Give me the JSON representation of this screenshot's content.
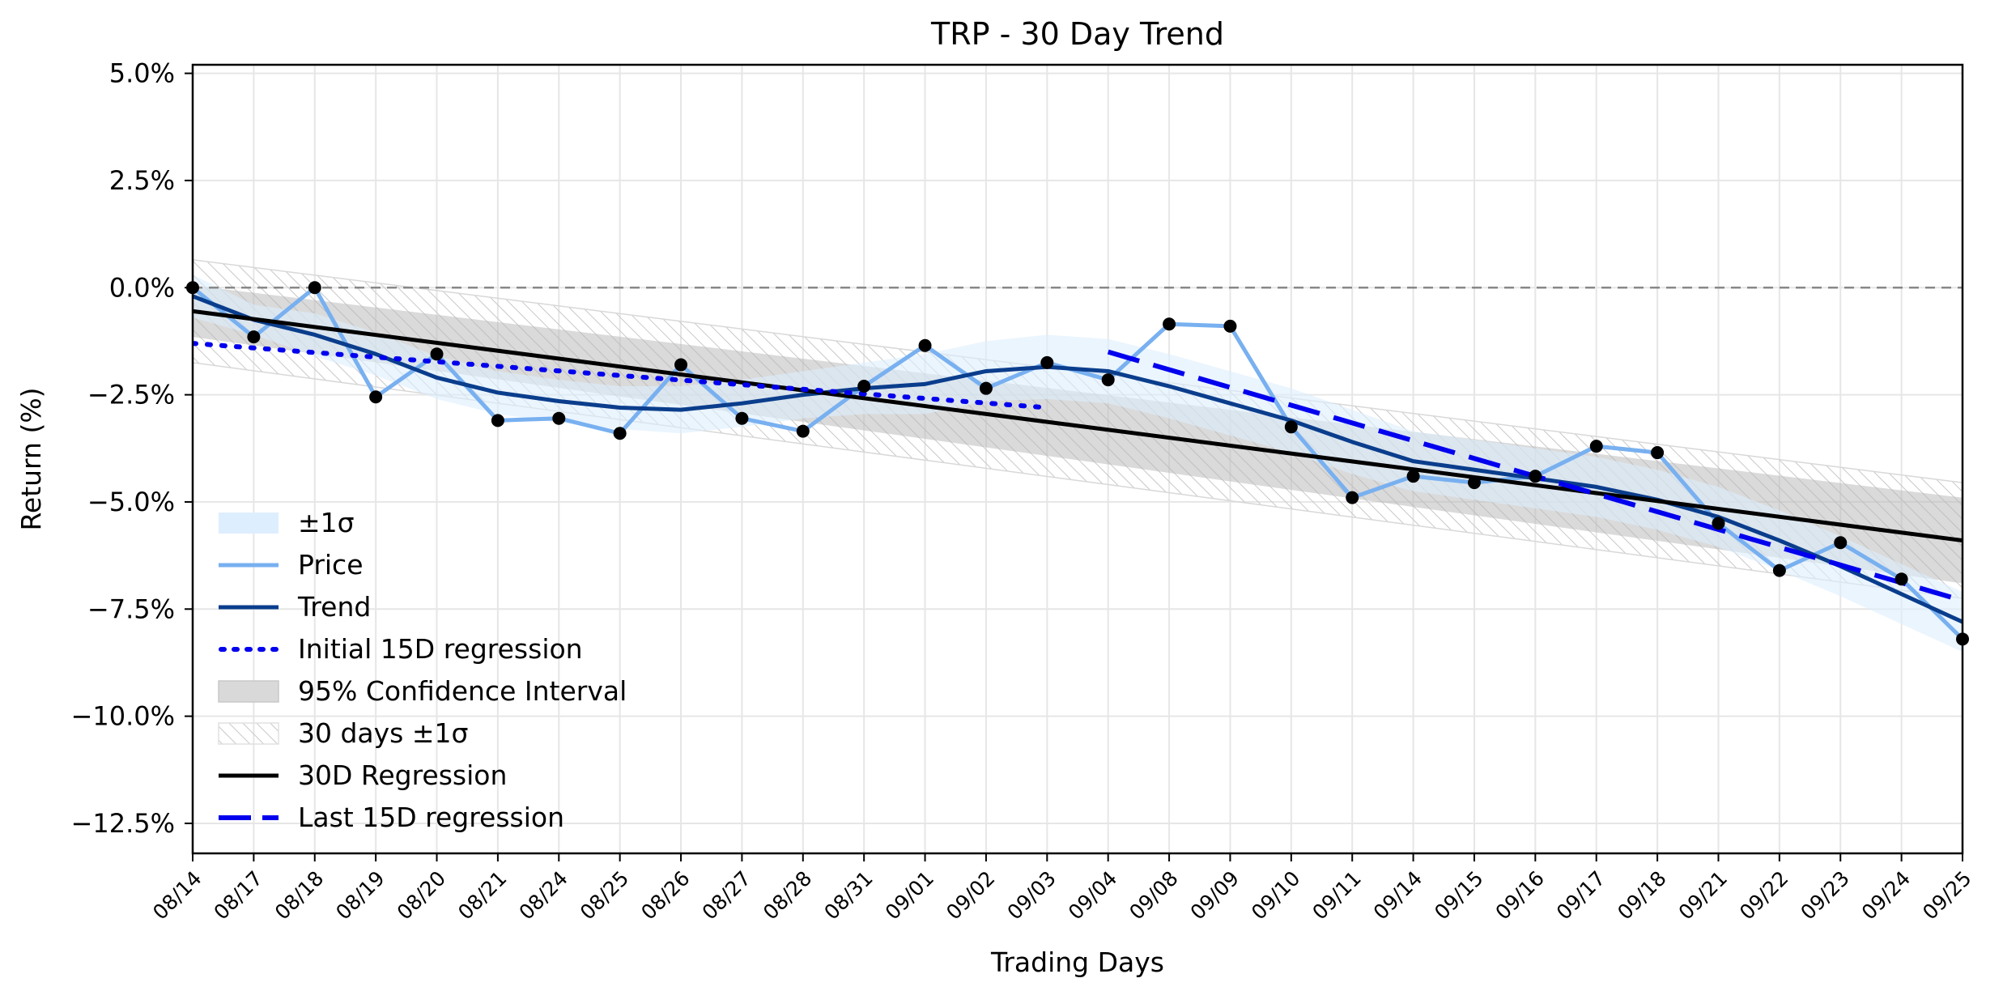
{
  "chart_data": {
    "type": "line",
    "title": "TRP - 30 Day Trend",
    "xlabel": "Trading Days",
    "ylabel": "Return (%)",
    "categories": [
      "08/14",
      "08/17",
      "08/18",
      "08/19",
      "08/20",
      "08/21",
      "08/24",
      "08/25",
      "08/26",
      "08/27",
      "08/28",
      "08/31",
      "09/01",
      "09/02",
      "09/03",
      "09/04",
      "09/08",
      "09/09",
      "09/10",
      "09/11",
      "09/14",
      "09/15",
      "09/16",
      "09/17",
      "09/18",
      "09/21",
      "09/22",
      "09/23",
      "09/24",
      "09/25"
    ],
    "ylim": [
      -13.2,
      5.2
    ],
    "yticks": [
      5.0,
      2.5,
      0.0,
      -2.5,
      -5.0,
      -7.5,
      -10.0,
      -12.5
    ],
    "ytick_labels": [
      "5.0%",
      "2.5%",
      "0.0%",
      "−2.5%",
      "−5.0%",
      "−7.5%",
      "−10.0%",
      "−12.5%"
    ],
    "grid": true,
    "legend_position": "lower-left",
    "zero_line": 0.0,
    "series": [
      {
        "name": "Price",
        "color": "#78b0f0",
        "values": [
          0.0,
          -1.15,
          0.0,
          -2.55,
          -1.55,
          -3.1,
          -3.05,
          -3.4,
          -1.8,
          -3.05,
          -3.35,
          -2.3,
          -1.35,
          -2.35,
          -1.75,
          -2.15,
          -0.85,
          -0.9,
          -3.25,
          -4.9,
          -4.4,
          -4.55,
          -4.4,
          -3.7,
          -3.85,
          -5.5,
          -6.6,
          -5.95,
          -6.8,
          -8.2
        ]
      },
      {
        "name": "Trend",
        "color": "#0a3d8c",
        "values": [
          -0.2,
          -0.75,
          -1.1,
          -1.55,
          -2.1,
          -2.45,
          -2.65,
          -2.8,
          -2.85,
          -2.7,
          -2.5,
          -2.35,
          -2.25,
          -1.95,
          -1.85,
          -1.95,
          -2.3,
          -2.7,
          -3.1,
          -3.6,
          -4.05,
          -4.25,
          -4.45,
          -4.65,
          -4.95,
          -5.35,
          -5.9,
          -6.5,
          -7.15,
          -7.8
        ]
      },
      {
        "name": "Initial 15D regression",
        "color": "#0000ee",
        "style": "dotted",
        "x": [
          0,
          14
        ],
        "values": [
          -1.3,
          -2.8
        ]
      },
      {
        "name": "30D Regression",
        "color": "#000000",
        "x": [
          0,
          29
        ],
        "values": [
          -0.55,
          -5.9
        ]
      },
      {
        "name": "Last 15D regression",
        "color": "#0000ee",
        "style": "dashed",
        "x": [
          15,
          29
        ],
        "values": [
          -1.5,
          -7.3
        ]
      }
    ],
    "bands": [
      {
        "name": "±1σ",
        "color": "#ddeefe",
        "upper": [
          0.3,
          -0.4,
          -0.6,
          -1.05,
          -1.6,
          -1.95,
          -2.15,
          -2.3,
          -2.3,
          -2.15,
          -1.95,
          -1.75,
          -1.55,
          -1.25,
          -1.1,
          -1.2,
          -1.55,
          -1.95,
          -2.35,
          -2.85,
          -3.35,
          -3.55,
          -3.75,
          -3.95,
          -4.25,
          -4.65,
          -5.2,
          -5.8,
          -6.45,
          -7.1
        ],
        "lower": [
          -0.7,
          -1.1,
          -1.6,
          -2.05,
          -2.6,
          -2.95,
          -3.15,
          -3.3,
          -3.4,
          -3.25,
          -3.05,
          -2.95,
          -2.95,
          -2.65,
          -2.6,
          -2.7,
          -3.05,
          -3.45,
          -3.85,
          -4.35,
          -4.75,
          -4.95,
          -5.15,
          -5.35,
          -5.65,
          -6.05,
          -6.6,
          -7.2,
          -7.85,
          -8.5
        ]
      },
      {
        "name": "95% Confidence Interval",
        "color": "#b5b5b5",
        "upper": [
          0.05,
          -4.9
        ],
        "lower": [
          -1.15,
          -6.9
        ],
        "x": [
          0,
          29
        ]
      },
      {
        "name": "30 days ±1σ",
        "color": "#cccccc",
        "hatch": true,
        "upper": [
          0.65,
          -4.55
        ],
        "lower": [
          -1.75,
          -7.25
        ],
        "x": [
          0,
          29
        ]
      }
    ],
    "points_series": "Price",
    "legend_labels": [
      "±1σ",
      "Price",
      "Trend",
      "Initial 15D regression",
      "95% Confidence Interval",
      "30 days ±1σ",
      "30D Regression",
      "Last 15D regression"
    ]
  }
}
